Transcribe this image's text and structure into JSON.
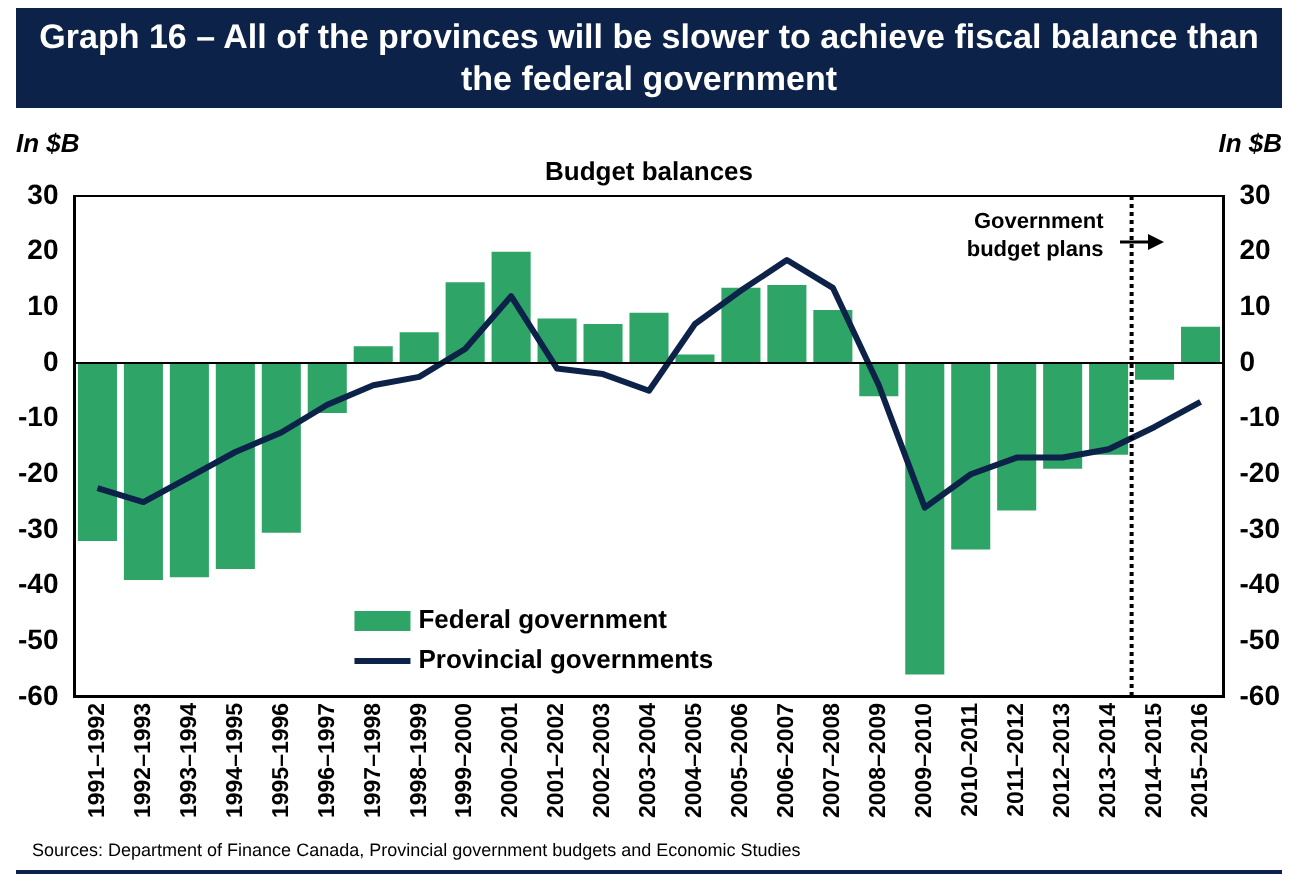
{
  "chart_data": {
    "type": "bar",
    "title": "Graph 16 – All of the provinces will be slower to achieve fiscal balance than the federal government",
    "subtitle": "Budget balances",
    "ylabel": "In $B",
    "y2label": "In $B",
    "categories": [
      "1991–1992",
      "1992–1993",
      "1993–1994",
      "1994–1995",
      "1995–1996",
      "1996–1997",
      "1997–1998",
      "1998–1999",
      "1999–2000",
      "2000–2001",
      "2001–2002",
      "2002–2003",
      "2003–2004",
      "2004–2005",
      "2005–2006",
      "2006–2007",
      "2007–2008",
      "2008–2009",
      "2009–2010",
      "2010–2011",
      "2011–2012",
      "2012–2013",
      "2013–2014",
      "2014–2015",
      "2015–2016"
    ],
    "series": [
      {
        "name": "Federal government",
        "color": "#2ea566",
        "values": [
          -32,
          -39,
          -38.5,
          -37,
          -30.5,
          -9,
          3,
          5.5,
          14.5,
          20,
          8,
          7,
          9,
          1.5,
          13.5,
          14,
          9.5,
          -6,
          -56,
          -33.5,
          -26.5,
          -19,
          -16.5,
          -3,
          6.5
        ]
      },
      {
        "name": "Provincial governments",
        "type": "line",
        "color": "#0d2248",
        "values": [
          -22.5,
          -25,
          -20.5,
          -16,
          -12.5,
          -7.5,
          -4,
          -2.5,
          2.5,
          12,
          -1,
          -2,
          -5,
          7,
          13,
          18.5,
          13.5,
          -4,
          -26,
          -20,
          -17,
          -17,
          -15.5,
          -11.5,
          -7
        ]
      }
    ],
    "ylim": [
      -60,
      30
    ],
    "yticks": [
      -60,
      -50,
      -40,
      -30,
      -20,
      -10,
      0,
      10,
      20,
      30
    ],
    "y2lim": [
      -60,
      30
    ],
    "y2ticks": [
      -60,
      -50,
      -40,
      -30,
      -20,
      -10,
      0,
      10,
      20,
      30
    ],
    "grid": false,
    "legend": "bottom left",
    "marker": "none",
    "line_style": "solid",
    "ref_lines": [
      {
        "axis": "x",
        "value": "2014–2015",
        "label": "Government budget plans",
        "line_style": "dotted",
        "color": "#000000"
      }
    ],
    "annotations": [
      "Sources: Department of Finance Canada, Provincial government budgets and Economic Studies"
    ]
  }
}
